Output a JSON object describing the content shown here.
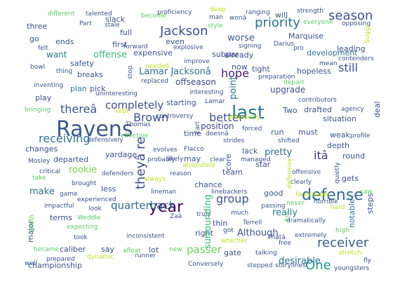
{
  "words": [
    {
      "text": "Ravens",
      "color": "#3b5a8c"
    },
    {
      "text": "last",
      "color": "#2a788e"
    },
    {
      "text": "year",
      "color": "#440154"
    },
    {
      "text": "defense",
      "color": "#31688e"
    },
    {
      "text": "season",
      "color": "#3b528b"
    },
    {
      "text": "Jackson",
      "color": "#3b528b"
    },
    {
      "text": "priority",
      "color": "#2c728e"
    },
    {
      "text": "receiver",
      "color": "#355f8d"
    },
    {
      "text": "theyâ re",
      "color": "#3e4989"
    },
    {
      "text": "One",
      "color": "#21918c"
    },
    {
      "text": "hope",
      "color": "#481f70"
    },
    {
      "text": "better",
      "color": "#3b528b"
    },
    {
      "text": "itâ",
      "color": "#46327e"
    },
    {
      "text": "Brown",
      "color": "#3b528b"
    },
    {
      "text": "receiving",
      "color": "#2c728e"
    },
    {
      "text": "thereâ",
      "color": "#3b528b"
    },
    {
      "text": "group",
      "color": "#3b528b"
    },
    {
      "text": "quarterback",
      "color": "#2e6e8e"
    },
    {
      "text": "passer",
      "color": "#6ece58"
    },
    {
      "text": "completely",
      "color": "#3e4c8a"
    },
    {
      "text": "still",
      "color": "#3b528b"
    },
    {
      "text": "Lamar Jacksonâ",
      "color": "#2d708e"
    },
    {
      "text": "offense",
      "color": "#35b779"
    },
    {
      "text": "Although",
      "color": "#3b528b"
    },
    {
      "text": "really",
      "color": "#2a788e"
    },
    {
      "text": "pretty",
      "color": "#31688e"
    },
    {
      "text": "make",
      "color": "#2c728e"
    },
    {
      "text": "rookie",
      "color": "#7ad151"
    },
    {
      "text": "desirable",
      "color": "#2d708e"
    },
    {
      "text": "offseason",
      "color": "#404688"
    },
    {
      "text": "hopeless",
      "color": "#3b528b"
    },
    {
      "text": "starting",
      "color": "#3b528b"
    },
    {
      "text": "worse",
      "color": "#365c8d"
    },
    {
      "text": "position",
      "color": "#3e4a89"
    },
    {
      "text": "upgrade",
      "color": "#3b528b"
    },
    {
      "text": "situation",
      "color": "#3b528b"
    },
    {
      "text": "development",
      "color": "#2c738e"
    },
    {
      "text": "want",
      "color": "#2a768e"
    },
    {
      "text": "first",
      "color": "#3b528b"
    },
    {
      "text": "already",
      "color": "#3e4989"
    },
    {
      "text": "Marquise",
      "color": "#3b528b"
    },
    {
      "text": "leading",
      "color": "#3b528b"
    },
    {
      "text": "full",
      "color": "#3b528b"
    },
    {
      "text": "even",
      "color": "#3b528b"
    },
    {
      "text": "expensive",
      "color": "#3b528b"
    },
    {
      "text": "subpar",
      "color": "#3b528b"
    },
    {
      "text": "three",
      "color": "#3b528b"
    },
    {
      "text": "go",
      "color": "#3b528b"
    },
    {
      "text": "ends",
      "color": "#3b528b"
    },
    {
      "text": "plan",
      "color": "#2a788e"
    },
    {
      "text": "pick",
      "color": "#3b528b"
    },
    {
      "text": "breaks",
      "color": "#3b528b"
    },
    {
      "text": "safety",
      "color": "#3b528b"
    },
    {
      "text": "play",
      "color": "#3b528b"
    },
    {
      "text": "slack",
      "color": "#3b528b"
    },
    {
      "text": "tight",
      "color": "#3b528b"
    },
    {
      "text": "now",
      "color": "#3b528b"
    },
    {
      "text": "Two",
      "color": "#3b528b"
    },
    {
      "text": "drafted",
      "color": "#3b528b"
    },
    {
      "text": "run",
      "color": "#3b528b"
    },
    {
      "text": "must",
      "color": "#3b528b"
    },
    {
      "text": "weak",
      "color": "#3b528b"
    },
    {
      "text": "depth",
      "color": "#3b528b"
    },
    {
      "text": "lack",
      "color": "#3b528b"
    },
    {
      "text": "round",
      "color": "#3b528b"
    },
    {
      "text": "gets",
      "color": "#3b528b"
    },
    {
      "text": "team",
      "color": "#3b528b"
    },
    {
      "text": "star",
      "color": "#3b528b"
    },
    {
      "text": "may",
      "color": "#3b528b"
    },
    {
      "text": "time",
      "color": "#3b528b"
    },
    {
      "text": "chance",
      "color": "#3b528b"
    },
    {
      "text": "good",
      "color": "#3b528b"
    },
    {
      "text": "thin",
      "color": "#3b528b"
    },
    {
      "text": "right",
      "color": "#3b528b"
    },
    {
      "text": "terms",
      "color": "#3b528b"
    },
    {
      "text": "less",
      "color": "#3b528b"
    },
    {
      "text": "changes",
      "color": "#3b528b"
    },
    {
      "text": "departed",
      "color": "#3b528b"
    },
    {
      "text": "yardage",
      "color": "#3b528b"
    },
    {
      "text": "caliber",
      "color": "#3b528b"
    },
    {
      "text": "say",
      "color": "#3b528b"
    },
    {
      "text": "lot",
      "color": "#3b528b"
    },
    {
      "text": "gate",
      "color": "#3b528b"
    },
    {
      "text": "championship",
      "color": "#3b528b"
    },
    {
      "text": "will",
      "color": "#3b528b"
    },
    {
      "text": "different",
      "color": "#5ec962"
    },
    {
      "text": "talented",
      "color": "#3b528b"
    },
    {
      "text": "become",
      "color": "#5ec962"
    },
    {
      "text": "proficiency",
      "color": "#3b528b"
    },
    {
      "text": "deep",
      "color": "#bddf26"
    },
    {
      "text": "man",
      "color": "#3b528b"
    },
    {
      "text": "wonâ",
      "color": "#3b528b"
    },
    {
      "text": "ranging",
      "color": "#3b528b"
    },
    {
      "text": "strength",
      "color": "#3b528b"
    },
    {
      "text": "Part",
      "color": "#3b528b"
    },
    {
      "text": "stale",
      "color": "#3b528b"
    },
    {
      "text": "style",
      "color": "#5ec962"
    },
    {
      "text": "everyone",
      "color": "#5ec962"
    },
    {
      "text": "opposing",
      "color": "#3b528b"
    },
    {
      "text": "felt",
      "color": "#3b528b"
    },
    {
      "text": "forward",
      "color": "#3b528b"
    },
    {
      "text": "explosive",
      "color": "#3b528b"
    },
    {
      "text": "signing",
      "color": "#3b528b"
    },
    {
      "text": "Darius",
      "color": "#3b528b"
    },
    {
      "text": "pro",
      "color": "#3b528b"
    },
    {
      "text": "bowl",
      "color": "#3b528b"
    },
    {
      "text": "thing",
      "color": "#3b528b"
    },
    {
      "text": "needed",
      "color": "#bddf26"
    },
    {
      "text": "improve",
      "color": "#3b528b"
    },
    {
      "text": "mean",
      "color": "#3b528b"
    },
    {
      "text": "contenders",
      "color": "#3b528b"
    },
    {
      "text": "inventing",
      "color": "#3b528b"
    },
    {
      "text": "replaced",
      "color": "#3b528b"
    },
    {
      "text": "preparation",
      "color": "#3b528b"
    },
    {
      "text": "depart",
      "color": "#5ec962"
    },
    {
      "text": "uninteresting",
      "color": "#3b528b"
    },
    {
      "text": "interesting",
      "color": "#3b528b"
    },
    {
      "text": "Lamar",
      "color": "#3b528b"
    },
    {
      "text": "contributors",
      "color": "#3b528b"
    },
    {
      "text": "agency",
      "color": "#3b528b"
    },
    {
      "text": "bringing",
      "color": "#5ec962"
    },
    {
      "text": "kept",
      "color": "#bddf26"
    },
    {
      "text": "controversy",
      "color": "#3b528b"
    },
    {
      "text": "differently",
      "color": "#bddf26"
    },
    {
      "text": "forced",
      "color": "#3b528b"
    },
    {
      "text": "Thomas",
      "color": "#3b528b"
    },
    {
      "text": "effective",
      "color": "#5ec962"
    },
    {
      "text": "doesnâ",
      "color": "#3b528b"
    },
    {
      "text": "shifted",
      "color": "#3b528b"
    },
    {
      "text": "profile",
      "color": "#3b528b"
    },
    {
      "text": "defensively",
      "color": "#3b528b"
    },
    {
      "text": "strides",
      "color": "#3b528b"
    },
    {
      "text": "evolves",
      "color": "#3b528b"
    },
    {
      "text": "Flacco",
      "color": "#3b528b"
    },
    {
      "text": "Mosley",
      "color": "#3b528b"
    },
    {
      "text": "probably",
      "color": "#3b528b"
    },
    {
      "text": "likely",
      "color": "#3b528b"
    },
    {
      "text": "clear",
      "color": "#3b528b"
    },
    {
      "text": "managed",
      "color": "#3b528b"
    },
    {
      "text": "absolutely",
      "color": "#bddf26"
    },
    {
      "text": "critical",
      "color": "#3b528b"
    },
    {
      "text": "defenders",
      "color": "#3b528b"
    },
    {
      "text": "reason",
      "color": "#3b528b"
    },
    {
      "text": "offensive",
      "color": "#3b528b"
    },
    {
      "text": "take",
      "color": "#5ec962"
    },
    {
      "text": "always",
      "color": "#bddf26"
    },
    {
      "text": "brought",
      "color": "#3b528b"
    },
    {
      "text": "clearly",
      "color": "#3b528b"
    },
    {
      "text": "game",
      "color": "#3b528b"
    },
    {
      "text": "experienced",
      "color": "#3b528b"
    },
    {
      "text": "lineman",
      "color": "#3b528b"
    },
    {
      "text": "linebackers",
      "color": "#3b528b"
    },
    {
      "text": "horrible",
      "color": "#3b528b"
    },
    {
      "text": "impactful",
      "color": "#3b528b"
    },
    {
      "text": "look",
      "color": "#3b528b"
    },
    {
      "text": "Zaâ",
      "color": "#3b528b"
    },
    {
      "text": "truly",
      "color": "#3b528b"
    },
    {
      "text": "much",
      "color": "#3b528b"
    },
    {
      "text": "passing",
      "color": "#3b528b"
    },
    {
      "text": "never",
      "color": "#5ec962"
    },
    {
      "text": "formidable",
      "color": "#bddf26"
    },
    {
      "text": "hard",
      "color": "#bddf26"
    },
    {
      "text": "saw",
      "color": "#5ec962"
    },
    {
      "text": "Weddle",
      "color": "#5ec962"
    },
    {
      "text": "expecting",
      "color": "#5ec962"
    },
    {
      "text": "Terrell",
      "color": "#3b528b"
    },
    {
      "text": "dramatically",
      "color": "#3b528b"
    },
    {
      "text": "took",
      "color": "#3b528b"
    },
    {
      "text": "inconsistent",
      "color": "#3b528b"
    },
    {
      "text": "got",
      "color": "#3b528b"
    },
    {
      "text": "Thatâ",
      "color": "#3b528b"
    },
    {
      "text": "whether",
      "color": "#bddf26"
    },
    {
      "text": "extremely",
      "color": "#3b528b"
    },
    {
      "text": "high",
      "color": "#5ec962"
    },
    {
      "text": "free",
      "color": "#3b528b"
    },
    {
      "text": "became",
      "color": "#5ec962"
    },
    {
      "text": "afloat",
      "color": "#5ec962"
    },
    {
      "text": "new",
      "color": "#5ec962"
    },
    {
      "text": "talking",
      "color": "#3b528b"
    },
    {
      "text": "stretch",
      "color": "#bddf26"
    },
    {
      "text": "prepared",
      "color": "#3b528b"
    },
    {
      "text": "dynamic",
      "color": "#bddf26"
    },
    {
      "text": "runner",
      "color": "#3b528b"
    },
    {
      "text": "well",
      "color": "#3b528b"
    },
    {
      "text": "Conversely",
      "color": "#3b528b"
    },
    {
      "text": "stepped",
      "color": "#3b528b"
    },
    {
      "text": "storylines",
      "color": "#3b528b"
    },
    {
      "text": "youngsters",
      "color": "#3b528b"
    },
    {
      "text": "fly",
      "color": "#3b528b"
    },
    {
      "text": "point",
      "color": "#2a788e"
    },
    {
      "text": "core",
      "color": "#3b528b"
    },
    {
      "text": "surrounding",
      "color": "#35b779"
    },
    {
      "text": "Eric",
      "color": "#5ec962"
    },
    {
      "text": "quietly",
      "color": "#3b528b"
    },
    {
      "text": "notable",
      "color": "#2a788e"
    },
    {
      "text": "steps",
      "color": "#3b528b"
    },
    {
      "text": "major",
      "color": "#3b528b"
    },
    {
      "text": "Smith",
      "color": "#5ec962"
    },
    {
      "text": "Suggs",
      "color": "#bddf26"
    },
    {
      "text": "stop",
      "color": "#3b528b"
    },
    {
      "text": "Earl",
      "color": "#3b528b"
    },
    {
      "text": "defensive",
      "color": "#bddf26"
    },
    {
      "text": "deal",
      "color": "#3b528b"
    }
  ]
}
